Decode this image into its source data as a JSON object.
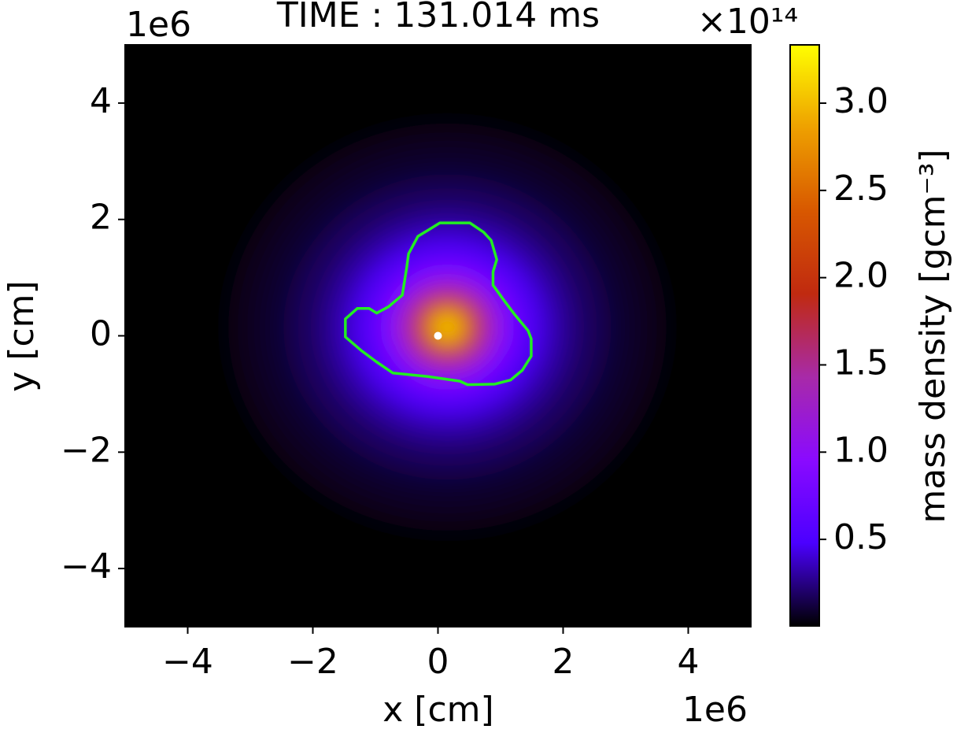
{
  "chart_data": {
    "type": "heatmap",
    "title": "TIME : 131.014 ms",
    "xlabel": "x [cm]",
    "ylabel": "y [cm]",
    "x_offset_label": "1e6",
    "y_offset_label": "1e6",
    "xlim": [
      -5,
      5
    ],
    "ylim": [
      -5,
      5
    ],
    "xticks": [
      {
        "value": -4,
        "label": "−4"
      },
      {
        "value": -2,
        "label": "−2"
      },
      0,
      2,
      4
    ],
    "yticks": [
      {
        "value": -4,
        "label": "−4"
      },
      {
        "value": -2,
        "label": "−2"
      },
      0,
      2,
      4
    ],
    "colormap": [
      "#000000",
      "#4b00ff",
      "#8a0aff",
      "#a82aa8",
      "#c02a10",
      "#d85800",
      "#eea000",
      "#ffff00"
    ],
    "field": {
      "center": [
        0.15,
        0.15
      ],
      "radii": [
        3.5,
        3.0,
        2.5,
        2.0,
        1.6,
        1.3,
        1.0,
        0.8,
        0.6,
        0.45,
        0.3,
        0.15
      ],
      "values": [
        0.06,
        0.1,
        0.18,
        0.3,
        0.45,
        0.65,
        0.95,
        1.3,
        1.8,
        2.3,
        2.8,
        3.2
      ]
    },
    "contour": {
      "color": "#22ee22",
      "x": [
        0.03,
        0.51,
        0.73,
        0.85,
        0.94,
        0.88,
        0.88,
        1.04,
        1.23,
        1.44,
        1.49,
        1.49,
        1.35,
        1.16,
        0.91,
        0.47,
        0.35,
        -0.16,
        -0.72,
        -0.98,
        -1.23,
        -1.48,
        -1.48,
        -1.29,
        -1.1,
        -0.98,
        -0.79,
        -0.57,
        -0.5,
        -0.47,
        -0.32,
        -0.12
      ],
      "y": [
        1.94,
        1.94,
        1.78,
        1.64,
        1.31,
        1.1,
        0.87,
        0.63,
        0.36,
        0.09,
        -0.05,
        -0.35,
        -0.59,
        -0.76,
        -0.83,
        -0.84,
        -0.78,
        -0.7,
        -0.64,
        -0.45,
        -0.25,
        -0.02,
        0.29,
        0.47,
        0.47,
        0.39,
        0.5,
        0.7,
        1.17,
        1.41,
        1.71,
        1.84
      ]
    },
    "marker": {
      "x": 0,
      "y": 0,
      "color": "#ffffff"
    },
    "colorbar": {
      "label": "mass density [gcm⁻³]",
      "offset_label": "×10¹⁴",
      "lim": [
        0.004,
        3.334
      ],
      "ticks": [
        0.5,
        {
          "value": 1,
          "label": "1.0"
        },
        1.5,
        {
          "value": 2,
          "label": "2.0"
        },
        2.5,
        {
          "value": 3,
          "label": "3.0"
        }
      ]
    }
  }
}
